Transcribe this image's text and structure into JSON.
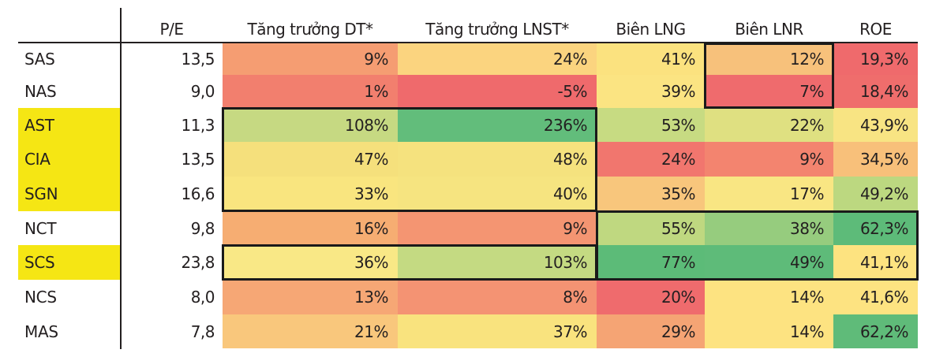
{
  "table": {
    "headers": {
      "pe": "P/E",
      "dt": "Tăng trưởng DT*",
      "lnst": "Tăng trưởng LNST*",
      "lng": "Biên LNG",
      "lnr": "Biên LNR",
      "roe": "ROE"
    },
    "rows": [
      {
        "ticker": "SAS",
        "highlight": false,
        "pe": "13,5",
        "dt": "9%",
        "lnst": "24%",
        "lng": "41%",
        "lnr": "12%",
        "roe": "19,3%"
      },
      {
        "ticker": "NAS",
        "highlight": false,
        "pe": "9,0",
        "dt": "1%",
        "lnst": "-5%",
        "lng": "39%",
        "lnr": "7%",
        "roe": "18,4%"
      },
      {
        "ticker": "AST",
        "highlight": true,
        "pe": "11,3",
        "dt": "108%",
        "lnst": "236%",
        "lng": "53%",
        "lnr": "22%",
        "roe": "43,9%"
      },
      {
        "ticker": "CIA",
        "highlight": true,
        "pe": "13,5",
        "dt": "47%",
        "lnst": "48%",
        "lng": "24%",
        "lnr": "9%",
        "roe": "34,5%"
      },
      {
        "ticker": "SGN",
        "highlight": true,
        "pe": "16,6",
        "dt": "33%",
        "lnst": "40%",
        "lng": "35%",
        "lnr": "17%",
        "roe": "49,2%"
      },
      {
        "ticker": "NCT",
        "highlight": false,
        "pe": "9,8",
        "dt": "16%",
        "lnst": "9%",
        "lng": "55%",
        "lnr": "38%",
        "roe": "62,3%"
      },
      {
        "ticker": "SCS",
        "highlight": true,
        "pe": "23,8",
        "dt": "36%",
        "lnst": "103%",
        "lng": "77%",
        "lnr": "49%",
        "roe": "41,1%"
      },
      {
        "ticker": "NCS",
        "highlight": false,
        "pe": "8,0",
        "dt": "13%",
        "lnst": "8%",
        "lng": "20%",
        "lnr": "14%",
        "roe": "41,6%"
      },
      {
        "ticker": "MAS",
        "highlight": false,
        "pe": "7,8",
        "dt": "21%",
        "lnst": "37%",
        "lng": "29%",
        "lnr": "14%",
        "roe": "62,2%"
      }
    ],
    "colors": {
      "ticker_highlight": "#f5e614",
      "dt": [
        "#f59d72",
        "#f27f6e",
        "#c6d982",
        "#f5e07c",
        "#f9e57f",
        "#f6ad72",
        "#f9e886",
        "#f6a775",
        "#f9c77c"
      ],
      "lnst": [
        "#fbd47f",
        "#ef6a6c",
        "#62bd7b",
        "#f5e27e",
        "#f6e480",
        "#f49572",
        "#c4da82",
        "#f49373",
        "#f9e37e"
      ],
      "lng": [
        "#fbe27f",
        "#fbe482",
        "#c7db82",
        "#f1766e",
        "#f8c67c",
        "#bfd880",
        "#5cbb78",
        "#ef6b6d",
        "#f5a474"
      ],
      "lnr": [
        "#f7c17b",
        "#ef6b6d",
        "#dfe081",
        "#f3846f",
        "#f9e683",
        "#96cc7e",
        "#5ebb79",
        "#fde381",
        "#fde381"
      ],
      "roe": [
        "#ef6a6c",
        "#ef6d6c",
        "#f8e483",
        "#f8c07a",
        "#bcd880",
        "#5dbb79",
        "#fde380",
        "#fde381",
        "#5fbb79"
      ]
    }
  },
  "chart_data": {
    "type": "table",
    "title": "",
    "columns": [
      "P/E",
      "Tăng trưởng DT*",
      "Tăng trưởng LNST*",
      "Biên LNG",
      "Biên LNR",
      "ROE"
    ],
    "row_labels": [
      "SAS",
      "NAS",
      "AST",
      "CIA",
      "SGN",
      "NCT",
      "SCS",
      "NCS",
      "MAS"
    ],
    "highlighted_rows": [
      "AST",
      "CIA",
      "SGN",
      "SCS"
    ],
    "values": [
      [
        13.5,
        9,
        24,
        41,
        12,
        19.3
      ],
      [
        9.0,
        1,
        -5,
        39,
        7,
        18.4
      ],
      [
        11.3,
        108,
        236,
        53,
        22,
        43.9
      ],
      [
        13.5,
        47,
        48,
        24,
        9,
        34.5
      ],
      [
        16.6,
        33,
        40,
        35,
        17,
        49.2
      ],
      [
        9.8,
        16,
        9,
        55,
        38,
        62.3
      ],
      [
        23.8,
        36,
        103,
        77,
        49,
        41.1
      ],
      [
        8.0,
        13,
        8,
        20,
        14,
        41.6
      ],
      [
        7.8,
        21,
        37,
        29,
        14,
        62.2
      ]
    ],
    "units": [
      "x",
      "%",
      "%",
      "%",
      "%",
      "%"
    ],
    "color_scale": "red (low) → yellow → green (high), per column",
    "boxed_regions": [
      {
        "columns": [
          "Biên LNR"
        ],
        "rows": [
          "SAS",
          "NAS"
        ]
      },
      {
        "columns": [
          "Tăng trưởng DT*",
          "Tăng trưởng LNST*"
        ],
        "rows": [
          "AST",
          "CIA",
          "SGN"
        ]
      },
      {
        "columns": [
          "Biên LNG",
          "Biên LNR",
          "ROE"
        ],
        "rows": [
          "NCT",
          "SCS"
        ]
      },
      {
        "columns": [
          "Tăng trưởng DT*",
          "Tăng trưởng LNST*"
        ],
        "rows": [
          "SCS"
        ]
      }
    ]
  }
}
